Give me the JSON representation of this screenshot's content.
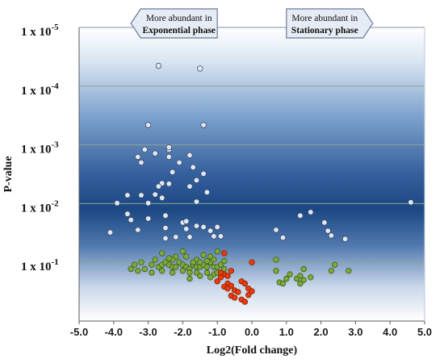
{
  "chart_data": {
    "type": "scatter",
    "title": "",
    "xlabel": "Log2(Fold change)",
    "ylabel": "P-value",
    "xlim": [
      -5.0,
      5.0
    ],
    "ylim": [
      1e-05,
      1
    ],
    "yscale": "log",
    "y_reversed": true,
    "x_ticks": [
      "-5.0",
      "-4.0",
      "-3.0",
      "-2.0",
      "-1.0",
      "0.0",
      "1.0",
      "2.0",
      "3.0",
      "4.0",
      "5.0"
    ],
    "y_ticks": [
      {
        "prefix": "1 x 10",
        "exp": "-5",
        "value": 1e-05
      },
      {
        "prefix": "1 x 10",
        "exp": "-4",
        "value": 0.0001
      },
      {
        "prefix": "1 x 10",
        "exp": "-3",
        "value": 0.001
      },
      {
        "prefix": "1 x 10",
        "exp": "-2",
        "value": 0.01
      },
      {
        "prefix": "1 x 10",
        "exp": "-1",
        "value": 0.1
      }
    ],
    "grid": "horizontal",
    "background": "blue vertical gradient",
    "annotations": [
      {
        "id": "left",
        "line1": "More abundant in",
        "line2": "Exponential phase",
        "pointer": "left",
        "x_from": -3.5,
        "x_to": -1.0
      },
      {
        "id": "right",
        "line1": "More abundant in",
        "line2": "Stationary phase",
        "pointer": "right",
        "x_from": 1.0,
        "x_to": 3.5
      }
    ],
    "series": [
      {
        "group": "light-blue",
        "color": "#dfe8f3",
        "stroke": "#3d4f6e",
        "points": [
          [
            -2.7,
            4.5e-05
          ],
          [
            -1.5,
            5e-05
          ],
          [
            -3.0,
            0.00046
          ],
          [
            -1.4,
            0.00046
          ],
          [
            -3.1,
            0.0012
          ],
          [
            -2.4,
            0.0012
          ],
          [
            -2.4,
            0.0011
          ],
          [
            -2.8,
            0.0014
          ],
          [
            -1.8,
            0.0015
          ],
          [
            -3.3,
            0.0016
          ],
          [
            -3.2,
            0.002
          ],
          [
            -2.4,
            0.0016
          ],
          [
            -2.1,
            0.002
          ],
          [
            -1.7,
            0.0024
          ],
          [
            -2.3,
            0.0029
          ],
          [
            -1.6,
            0.004
          ],
          [
            -1.4,
            0.0031
          ],
          [
            -2.6,
            0.0045
          ],
          [
            -2.4,
            0.0046
          ],
          [
            -2.7,
            0.0051
          ],
          [
            -3.6,
            0.0072
          ],
          [
            -3.2,
            0.0072
          ],
          [
            -2.8,
            0.007
          ],
          [
            -1.8,
            0.0051
          ],
          [
            -1.3,
            0.0064
          ],
          [
            -3.9,
            0.0098
          ],
          [
            -3.0,
            0.0098
          ],
          [
            -2.6,
            0.008
          ],
          [
            -1.6,
            0.0093
          ],
          [
            -3.6,
            0.015
          ],
          [
            -3.5,
            0.019
          ],
          [
            -3.0,
            0.018
          ],
          [
            -2.5,
            0.016
          ],
          [
            -2.0,
            0.021
          ],
          [
            -1.9,
            0.02
          ],
          [
            -4.1,
            0.031
          ],
          [
            -3.3,
            0.028
          ],
          [
            -2.5,
            0.026
          ],
          [
            -1.9,
            0.027
          ],
          [
            -1.6,
            0.024
          ],
          [
            -1.4,
            0.025
          ],
          [
            -1.2,
            0.029
          ],
          [
            -1.1,
            0.036
          ],
          [
            -0.9,
            0.036
          ],
          [
            -1.8,
            0.037
          ],
          [
            -2.5,
            0.039
          ],
          [
            -2.2,
            0.037
          ],
          [
            -1.0,
            0.025
          ],
          [
            0.7,
            0.028
          ],
          [
            0.9,
            0.038
          ],
          [
            1.7,
            0.014
          ],
          [
            2.1,
            0.021
          ],
          [
            2.2,
            0.029
          ],
          [
            2.3,
            0.035
          ],
          [
            2.7,
            0.04
          ],
          [
            1.4,
            0.016
          ],
          [
            4.6,
            0.0095
          ]
        ]
      },
      {
        "group": "green",
        "color": "#7da83c",
        "stroke": "#3e5e18",
        "points": [
          [
            -3.2,
            0.1
          ],
          [
            -3.4,
            0.11
          ],
          [
            -3.5,
            0.13
          ],
          [
            -3.1,
            0.13
          ],
          [
            -2.9,
            0.11
          ],
          [
            -2.7,
            0.12
          ],
          [
            -2.6,
            0.11
          ],
          [
            -2.8,
            0.09
          ],
          [
            -2.5,
            0.1
          ],
          [
            -2.4,
            0.11
          ],
          [
            -2.3,
            0.12
          ],
          [
            -2.2,
            0.12
          ],
          [
            -2.1,
            0.1
          ],
          [
            -2.0,
            0.11
          ],
          [
            -1.9,
            0.12
          ],
          [
            -1.8,
            0.13
          ],
          [
            -1.7,
            0.11
          ],
          [
            -1.6,
            0.12
          ],
          [
            -1.5,
            0.12
          ],
          [
            -1.4,
            0.11
          ],
          [
            -1.3,
            0.12
          ],
          [
            -1.2,
            0.1
          ],
          [
            -1.1,
            0.12
          ],
          [
            -1.0,
            0.12
          ],
          [
            -0.9,
            0.11
          ],
          [
            -2.6,
            0.14
          ],
          [
            -2.3,
            0.15
          ],
          [
            -2.0,
            0.14
          ],
          [
            -1.8,
            0.15
          ],
          [
            -1.6,
            0.15
          ],
          [
            -1.3,
            0.15
          ],
          [
            -1.1,
            0.16
          ],
          [
            -1.0,
            0.15
          ],
          [
            -0.8,
            0.13
          ],
          [
            -2.9,
            0.15
          ],
          [
            -3.3,
            0.14
          ],
          [
            -2.2,
            0.08
          ],
          [
            -1.9,
            0.08
          ],
          [
            -1.6,
            0.09
          ],
          [
            -1.4,
            0.075
          ],
          [
            -1.2,
            0.08
          ],
          [
            -2.6,
            0.07
          ],
          [
            -2.0,
            0.065
          ],
          [
            -1.0,
            0.065
          ],
          [
            -2.3,
            0.09
          ],
          [
            -1.7,
            0.1
          ],
          [
            -1.5,
            0.1
          ],
          [
            -1.1,
            0.09
          ],
          [
            -2.4,
            0.085
          ],
          [
            -1.3,
            0.095
          ],
          [
            -0.8,
            0.095
          ],
          [
            -1.5,
            0.17
          ],
          [
            -1.8,
            0.19
          ],
          [
            -1.2,
            0.18
          ],
          [
            0.7,
            0.14
          ],
          [
            0.8,
            0.22
          ],
          [
            1.0,
            0.19
          ],
          [
            1.1,
            0.16
          ],
          [
            1.3,
            0.19
          ],
          [
            1.4,
            0.17
          ],
          [
            1.5,
            0.2
          ],
          [
            1.7,
            0.18
          ],
          [
            1.5,
            0.13
          ],
          [
            2.3,
            0.14
          ],
          [
            2.4,
            0.11
          ],
          [
            2.8,
            0.14
          ],
          [
            1.4,
            0.23
          ],
          [
            0.9,
            0.23
          ],
          [
            0.7,
            0.09
          ]
        ]
      },
      {
        "group": "red",
        "color": "#e83b0e",
        "stroke": "#8a2000",
        "points": [
          [
            -0.8,
            0.07
          ],
          [
            -0.6,
            0.14
          ],
          [
            -0.8,
            0.16
          ],
          [
            -0.7,
            0.17
          ],
          [
            -0.9,
            0.18
          ],
          [
            -1.0,
            0.21
          ],
          [
            -0.7,
            0.23
          ],
          [
            -0.6,
            0.25
          ],
          [
            -0.8,
            0.26
          ],
          [
            -0.7,
            0.28
          ],
          [
            -0.5,
            0.3
          ],
          [
            -0.6,
            0.37
          ],
          [
            -0.5,
            0.4
          ],
          [
            -0.3,
            0.21
          ],
          [
            -0.2,
            0.23
          ],
          [
            -0.1,
            0.28
          ],
          [
            0.0,
            0.31
          ],
          [
            -0.1,
            0.36
          ],
          [
            -0.3,
            0.43
          ],
          [
            -0.2,
            0.47
          ],
          [
            0.0,
            0.1
          ],
          [
            -0.9,
            0.15
          ],
          [
            -0.4,
            0.32
          ]
        ]
      }
    ]
  }
}
